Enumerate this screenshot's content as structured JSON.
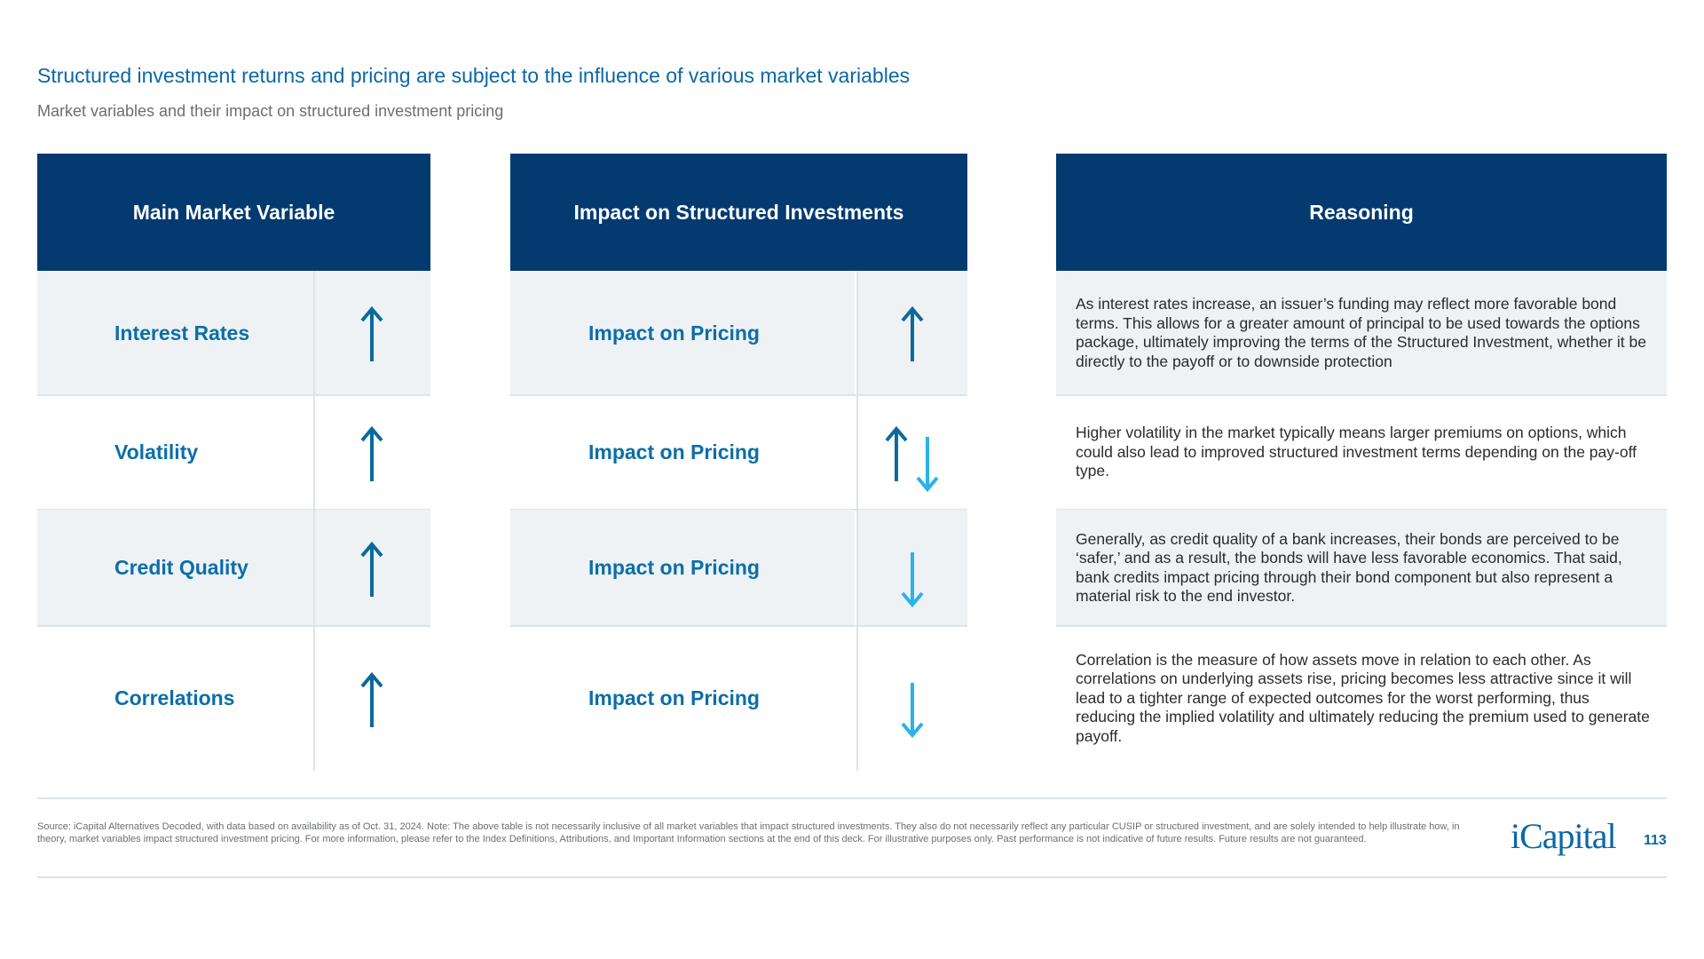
{
  "title": "Structured investment returns and pricing are subject to the influence of various market variables",
  "subtitle": "Market variables and their impact on structured investment pricing",
  "headers": {
    "variable": "Main Market Variable",
    "impact": "Impact on Structured Investments",
    "reasoning": "Reasoning"
  },
  "colors": {
    "header": "#033a70",
    "accent": "#0b67a6",
    "arrow_up": "#0b6a9c",
    "arrow_down": "#2ab2ea"
  },
  "rows": [
    {
      "variable": "Interest Rates",
      "variable_arrow": "arrow-up-icon",
      "impact": "Impact on Pricing",
      "impact_arrows": [
        "up"
      ],
      "reasoning": "As interest rates increase, an issuer’s funding may reflect more favorable bond terms. This allows for a greater amount of principal to be used towards the options package, ultimately improving the terms of the Structured Investment, whether it be directly to the payoff or to downside protection"
    },
    {
      "variable": "Volatility",
      "variable_arrow": "arrow-up-icon",
      "impact": "Impact on Pricing",
      "impact_arrows": [
        "up",
        "down"
      ],
      "reasoning": "Higher volatility in the market typically means larger premiums on options, which could also lead to improved structured investment terms depending on the pay-off type."
    },
    {
      "variable": "Credit Quality",
      "variable_arrow": "arrow-up-icon",
      "impact": "Impact on Pricing",
      "impact_arrows": [
        "down"
      ],
      "reasoning": "Generally, as credit quality of a bank increases, their bonds are perceived to be ‘safer,’ and as a result, the bonds will have less favorable economics. That said, bank credits impact pricing through their bond component but also represent a material risk to the end investor."
    },
    {
      "variable": "Correlations",
      "variable_arrow": "arrow-up-icon",
      "impact": "Impact on Pricing",
      "impact_arrows": [
        "down"
      ],
      "reasoning": "Correlation is the measure of how assets move in relation to each other. As correlations on underlying assets rise, pricing becomes less attractive since it will lead to a tighter range of expected outcomes for the worst performing, thus reducing the implied volatility and ultimately reducing the premium used to generate payoff."
    }
  ],
  "footer": "Source: iCapital Alternatives Decoded, with data based on availability as of Oct. 31, 2024. Note: The above table is not necessarily inclusive of all market variables that impact structured investments. They also do not necessarily reflect any particular CUSIP or structured investment, and are solely intended to help illustrate how, in theory, market variables impact structured investment pricing. For more information, please refer to the Index Definitions, Attributions, and Important Information sections at the end of this deck. For illustrative purposes only. Past performance is not indicative of future results. Future results are not guaranteed.",
  "logo": "iCapital",
  "page_number": "113"
}
